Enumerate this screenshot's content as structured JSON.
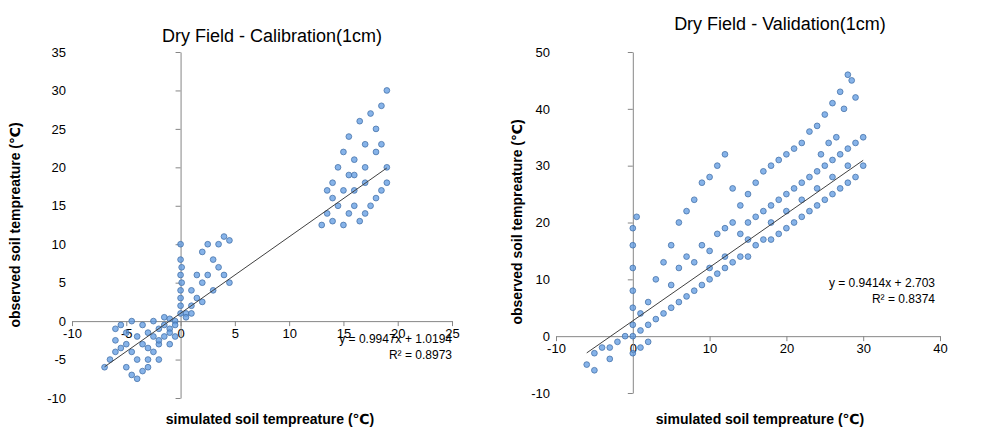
{
  "chart_data": [
    {
      "type": "scatter",
      "title": "Dry Field - Calibration(1cm)",
      "x_label": "simulated soil tempreature (℃)",
      "y_label": "observed soil tempreature (℃)",
      "color": "#4f81bd",
      "marker": "circle",
      "xlim": [
        -10,
        25
      ],
      "xticks": [
        -10,
        -5,
        0,
        5,
        10,
        15,
        20,
        25
      ],
      "ylim": [
        -10,
        35
      ],
      "yticks": [
        -10,
        -5,
        0,
        5,
        10,
        15,
        20,
        25,
        30,
        35
      ],
      "x": [
        -6,
        -5.5,
        -5,
        -4.5,
        -4,
        -3.5,
        -3,
        -2.5,
        -2,
        -1.5,
        -1,
        -0.5,
        -5,
        -4.5,
        -4,
        -3.5,
        -3,
        -2.5,
        -2,
        -1.5,
        -6.5,
        -7,
        -6,
        -5.5,
        -4.5,
        -3.5,
        -2.5,
        -1.5,
        -1,
        -0.5,
        -4,
        -3,
        -2,
        -1,
        -0.5,
        -5,
        -6,
        -3,
        -2,
        -1,
        0,
        0,
        0,
        0,
        0,
        0.1,
        0,
        0.1,
        0,
        0.5,
        1,
        1.5,
        2,
        2.5,
        3,
        3.5,
        4,
        4.5,
        3,
        2,
        1,
        1.5,
        2,
        2.5,
        4,
        4.5,
        1,
        0.5,
        3.5,
        13,
        13.5,
        14,
        14.5,
        15,
        15.5,
        16,
        16.5,
        17,
        17.5,
        18,
        18.5,
        19,
        14,
        14.5,
        15,
        15.5,
        16,
        16.5,
        17,
        17.5,
        18,
        18.5,
        19,
        15,
        16,
        17,
        18,
        19,
        18.5,
        14,
        13.5,
        16,
        17,
        15.5
      ],
      "values": [
        -4,
        -3.5,
        -3,
        -4,
        -2,
        -3,
        -1.5,
        -2,
        -1,
        -0.5,
        -1,
        0,
        -6,
        -7,
        -7.5,
        -6.5,
        -5,
        -4,
        -3,
        -2,
        -5,
        -6,
        -1,
        -0.5,
        0,
        -0.5,
        0,
        0.5,
        0.3,
        -0.5,
        -5,
        -6,
        -5,
        -3,
        -2,
        -1.5,
        -2.5,
        -3.5,
        -2.5,
        -1.5,
        2,
        4,
        6,
        8,
        10,
        5,
        3,
        7,
        1,
        1,
        2,
        3,
        5,
        6,
        8,
        10,
        11,
        10.5,
        4,
        2.5,
        4,
        6,
        9,
        10,
        6,
        5,
        1,
        0.5,
        7,
        12.5,
        14,
        13,
        15,
        12.5,
        14,
        15,
        13,
        14,
        15,
        16,
        17,
        18,
        18,
        20,
        22,
        24,
        21,
        26,
        23,
        27,
        25,
        28,
        30,
        17,
        19,
        20,
        22,
        20,
        23,
        16,
        17,
        17,
        18,
        19
      ],
      "trendline": {
        "slope": 0.9947,
        "intercept": 1.0194,
        "x_start": -7,
        "x_end": 19,
        "label": "y = 0.9947x + 1.0194",
        "r2_label": "R² = 0.8973"
      }
    },
    {
      "type": "scatter",
      "title": "Dry Field - Validation(1cm)",
      "x_label": "simulated soil tempreature (℃)",
      "y_label": "observed soil tempreature (℃)",
      "color": "#4f81bd",
      "marker": "circle",
      "xlim": [
        -10,
        40
      ],
      "xticks": [
        -10,
        0,
        10,
        20,
        30,
        40
      ],
      "ylim": [
        -10,
        50
      ],
      "yticks": [
        -10,
        0,
        10,
        20,
        30,
        40,
        50
      ],
      "x": [
        -6,
        -5,
        -4,
        -3,
        -2,
        -1,
        0,
        0,
        0,
        0,
        0,
        0,
        0,
        0.5,
        1,
        1,
        2,
        2,
        3,
        3,
        4,
        4,
        5,
        5,
        5,
        6,
        6,
        6,
        7,
        7,
        7,
        8,
        8,
        8,
        9,
        9,
        9,
        10,
        10,
        10,
        11,
        11,
        11,
        12,
        12,
        12,
        13,
        13,
        13,
        14,
        14,
        14,
        15,
        15,
        15,
        16,
        16,
        16,
        17,
        17,
        17,
        18,
        18,
        18,
        19,
        19,
        19,
        20,
        20,
        20,
        21,
        21,
        21,
        22,
        22,
        22,
        23,
        23,
        23,
        24,
        24,
        24,
        25,
        25,
        25,
        26,
        26,
        26,
        27,
        27,
        27,
        28,
        28,
        28,
        29,
        29,
        29,
        30,
        30,
        28.5,
        27.5,
        26.5,
        25.5,
        24.5,
        -5,
        -3,
        1,
        2,
        0,
        20,
        22,
        24,
        26,
        28,
        18,
        15,
        10,
        12
      ],
      "values": [
        -5,
        -3,
        -2,
        -2,
        -1,
        0,
        0,
        2,
        5,
        8,
        12,
        16,
        19,
        21,
        4,
        1,
        2,
        6,
        3,
        10,
        4,
        13,
        5,
        9,
        16,
        6,
        12,
        20,
        7,
        14,
        22,
        8,
        13,
        24,
        9,
        16,
        27,
        10,
        15,
        28,
        11,
        18,
        30,
        12,
        19,
        32,
        13,
        20,
        26,
        14,
        18,
        23,
        14,
        20,
        25,
        16,
        21,
        27,
        17,
        22,
        29,
        17,
        23,
        30,
        18,
        24,
        31,
        19,
        25,
        32,
        20,
        26,
        33,
        21,
        27,
        34,
        22,
        28,
        36,
        23,
        29,
        37,
        24,
        30,
        39,
        25,
        31,
        41,
        26,
        32,
        43,
        27,
        33,
        46,
        28,
        34,
        42,
        30,
        35,
        45,
        40,
        35,
        34,
        32,
        -6,
        -4,
        -2,
        -1,
        -3,
        22,
        24,
        26,
        28,
        30,
        20,
        17,
        12,
        14
      ],
      "trendline": {
        "slope": 0.9414,
        "intercept": 2.703,
        "x_start": -6,
        "x_end": 30,
        "label": "y = 0.9414x + 2.703",
        "r2_label": "R² = 0.8374"
      }
    }
  ]
}
